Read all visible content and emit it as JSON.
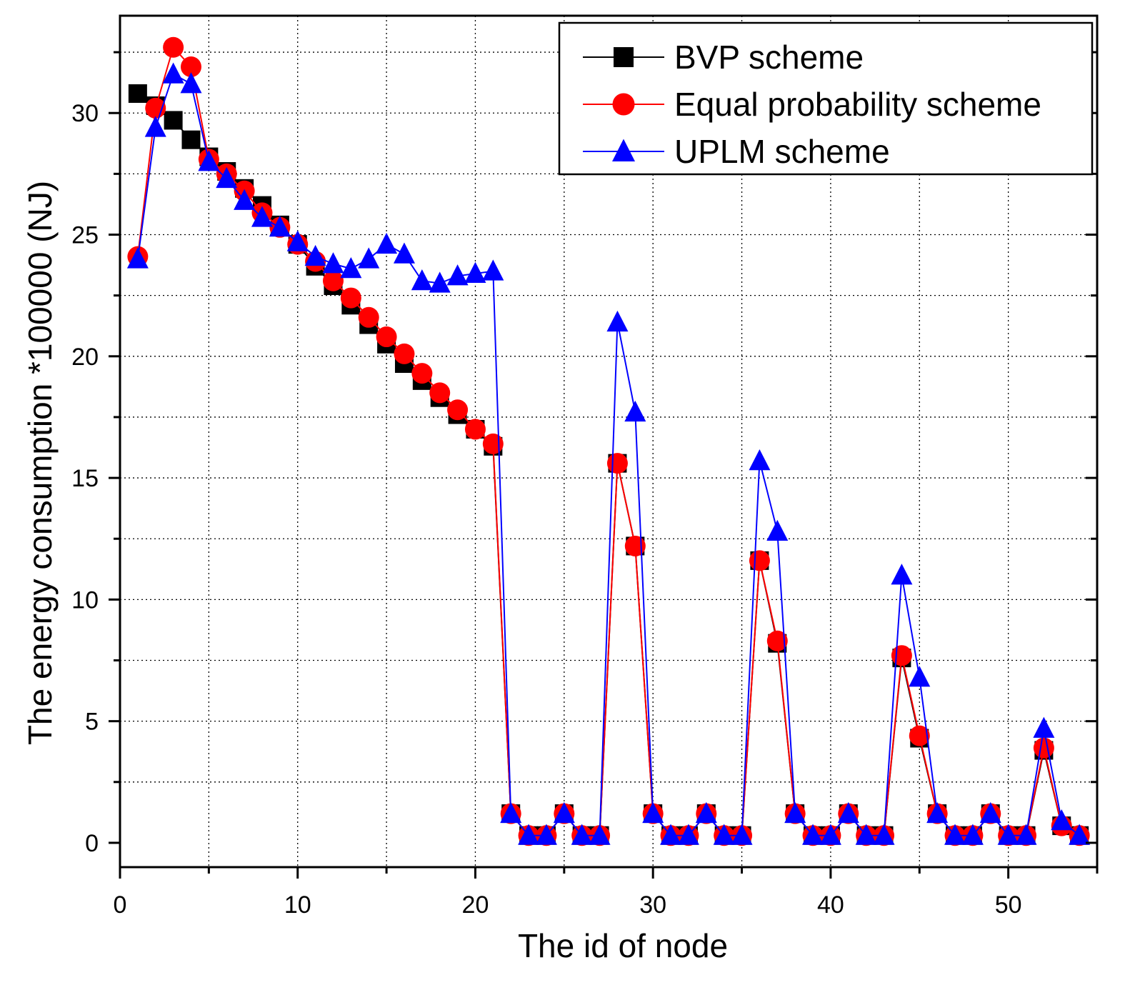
{
  "chart_data": {
    "type": "line",
    "title": "",
    "xlabel": "The id of node",
    "ylabel": "The energy consumption *100000 (NJ)",
    "xlim": [
      0,
      55
    ],
    "ylim": [
      -1,
      34
    ],
    "xticks": [
      0,
      10,
      20,
      30,
      40,
      50
    ],
    "yticks": [
      0,
      5,
      10,
      15,
      20,
      25,
      30
    ],
    "grid": "dotted at minor and major steps",
    "legend_position": "top-right",
    "x": [
      1,
      2,
      3,
      4,
      5,
      6,
      7,
      8,
      9,
      10,
      11,
      12,
      13,
      14,
      15,
      16,
      17,
      18,
      19,
      20,
      21,
      22,
      23,
      24,
      25,
      26,
      27,
      28,
      29,
      30,
      31,
      32,
      33,
      34,
      35,
      36,
      37,
      38,
      39,
      40,
      41,
      42,
      43,
      44,
      45,
      46,
      47,
      48,
      49,
      50,
      51,
      52,
      53,
      54
    ],
    "series": [
      {
        "name": "BVP scheme",
        "color": "#000000",
        "marker": "square",
        "values": [
          30.8,
          30.3,
          29.7,
          28.9,
          28.2,
          27.6,
          26.9,
          26.2,
          25.4,
          24.6,
          23.7,
          22.9,
          22.1,
          21.3,
          20.5,
          19.7,
          19.0,
          18.3,
          17.6,
          17.0,
          16.3,
          1.2,
          0.3,
          0.3,
          1.2,
          0.3,
          0.3,
          15.6,
          12.2,
          1.2,
          0.3,
          0.3,
          1.2,
          0.3,
          0.3,
          11.6,
          8.2,
          1.2,
          0.3,
          0.3,
          1.2,
          0.3,
          0.3,
          7.6,
          4.3,
          1.2,
          0.3,
          0.3,
          1.2,
          0.3,
          0.3,
          3.8,
          0.7,
          0.3
        ]
      },
      {
        "name": "Equal probability scheme",
        "color": "#ff0000",
        "marker": "circle",
        "values": [
          24.1,
          30.2,
          32.7,
          31.9,
          28.1,
          27.5,
          26.8,
          25.9,
          25.3,
          24.6,
          23.9,
          23.1,
          22.4,
          21.6,
          20.8,
          20.1,
          19.3,
          18.5,
          17.8,
          17.0,
          16.4,
          1.2,
          0.3,
          0.3,
          1.2,
          0.3,
          0.3,
          15.6,
          12.2,
          1.2,
          0.3,
          0.3,
          1.2,
          0.3,
          0.3,
          11.6,
          8.3,
          1.2,
          0.3,
          0.3,
          1.2,
          0.3,
          0.3,
          7.7,
          4.4,
          1.2,
          0.3,
          0.3,
          1.2,
          0.3,
          0.3,
          3.9,
          0.7,
          0.3
        ]
      },
      {
        "name": "UPLM scheme",
        "color": "#0000ff",
        "marker": "triangle",
        "values": [
          24.0,
          29.4,
          31.6,
          31.2,
          28.0,
          27.3,
          26.4,
          25.7,
          25.3,
          24.7,
          24.1,
          23.8,
          23.6,
          24.0,
          24.6,
          24.2,
          23.1,
          23.0,
          23.3,
          23.4,
          23.5,
          1.2,
          0.3,
          0.3,
          1.2,
          0.3,
          0.3,
          21.4,
          17.7,
          1.2,
          0.3,
          0.3,
          1.2,
          0.3,
          0.3,
          15.7,
          12.8,
          1.2,
          0.3,
          0.3,
          1.2,
          0.3,
          0.3,
          11.0,
          6.8,
          1.2,
          0.3,
          0.3,
          1.2,
          0.3,
          0.3,
          4.7,
          0.9,
          0.3
        ]
      }
    ]
  }
}
